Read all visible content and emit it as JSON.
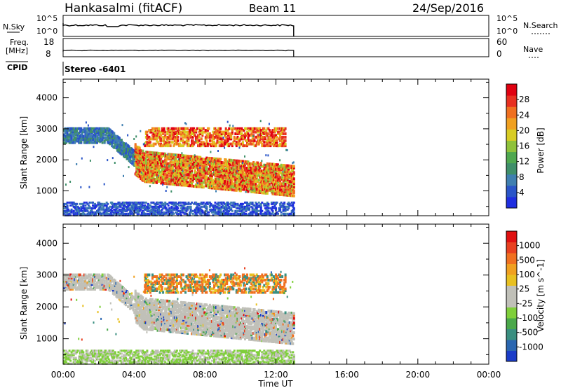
{
  "header": {
    "station": "Hankasalmi (fitACF)",
    "beam": "Beam 11",
    "date": "24/Sep/2016"
  },
  "top_panels": {
    "nsky_label": "N.Sky",
    "nsky_ticks": [
      "10^5",
      "10^0"
    ],
    "nsearch_label": "N.Search",
    "freq_label_1": "Freq.",
    "freq_label_2": "[MHz]",
    "freq_ticks": [
      "18",
      "8"
    ],
    "nave_ticks": [
      "60",
      "0"
    ],
    "nave_label": "Nave",
    "cpid_label": "CPID",
    "cpid_value": "Stereo -6401"
  },
  "chart_data": [
    {
      "type": "heatmap",
      "name": "power",
      "ylabel": "Slant Range [km]",
      "xlabel": "",
      "x_range_hours": [
        0,
        24
      ],
      "ylim": [
        200,
        4600
      ],
      "y_ticks": [
        1000,
        2000,
        3000,
        4000
      ],
      "colorbar": {
        "label": "Power [dB]",
        "ticks": [
          4,
          8,
          12,
          16,
          20,
          24,
          28
        ],
        "range": [
          0,
          32
        ],
        "colors": [
          "#1f2ee0",
          "#2a55c8",
          "#3f7fb0",
          "#3f8f6a",
          "#4fa84f",
          "#8fc23a",
          "#d8cc24",
          "#f0a020",
          "#f07020",
          "#e83020",
          "#e00010"
        ]
      },
      "data_extent_hours": [
        0,
        13
      ]
    },
    {
      "type": "heatmap",
      "name": "velocity",
      "ylabel": "Slant Range [km]",
      "xlabel": "Time UT",
      "x_range_hours": [
        0,
        24
      ],
      "x_ticks": [
        "00:00",
        "04:00",
        "08:00",
        "12:00",
        "16:00",
        "20:00",
        "00:00"
      ],
      "ylim": [
        200,
        4600
      ],
      "y_ticks": [
        1000,
        2000,
        3000,
        4000
      ],
      "colorbar": {
        "label": "Velocity [m s^-1]",
        "ticks": [
          "1000",
          "500",
          "100",
          "25",
          "-25",
          "-100",
          "-500",
          "-1000"
        ],
        "colors": [
          "#1a3cc8",
          "#2a66b0",
          "#3a8f80",
          "#4aa84a",
          "#7fcf3a",
          "#c0c0b8",
          "#c0c0b8",
          "#e8c020",
          "#f0a020",
          "#f07020",
          "#e84020",
          "#e01010"
        ]
      },
      "data_extent_hours": [
        0,
        13
      ]
    }
  ]
}
